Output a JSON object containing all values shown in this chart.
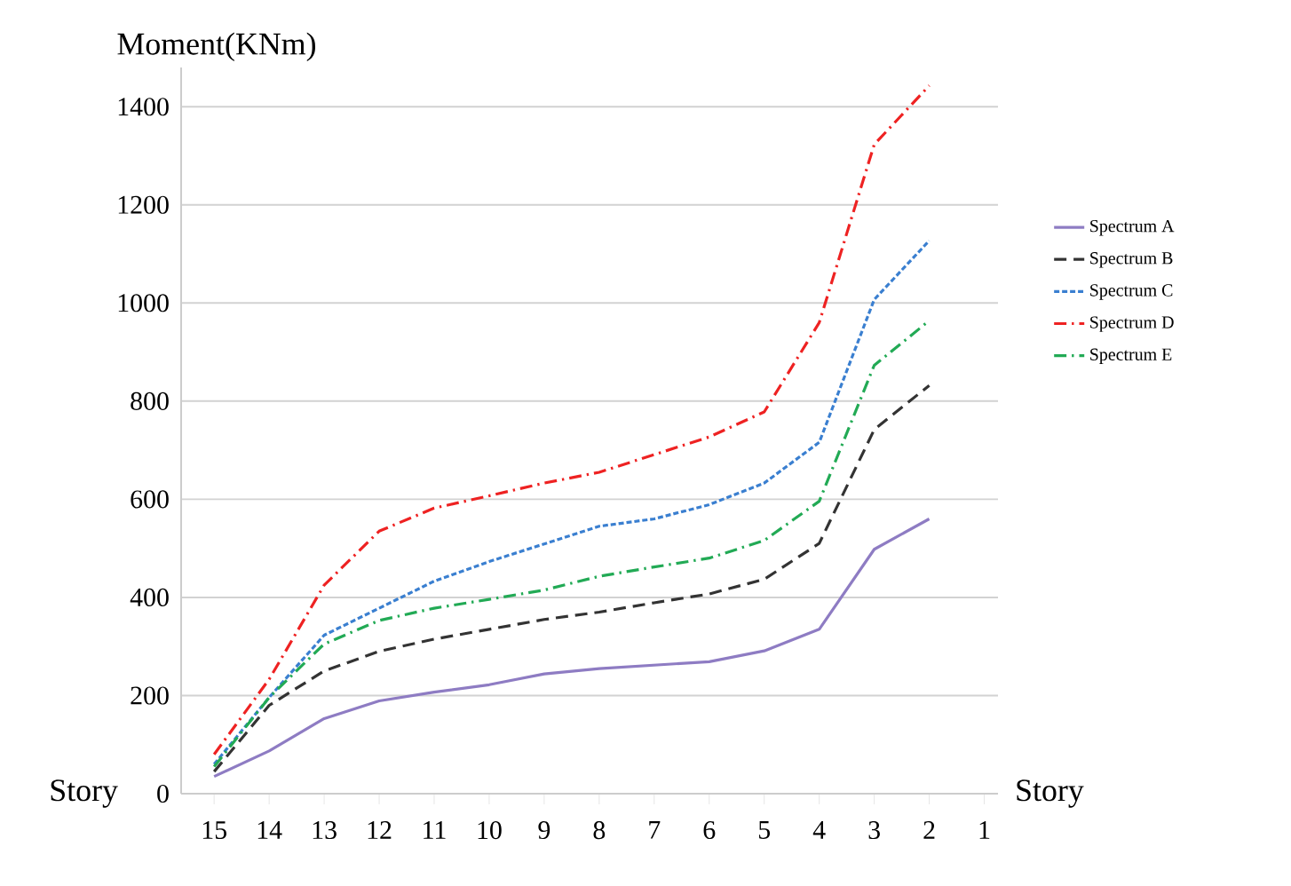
{
  "chart_data": {
    "type": "line",
    "ylabel": "Moment(KNm)",
    "xlabel": "Story",
    "annotations": [
      "Story"
    ],
    "categories": [
      "15",
      "14",
      "13",
      "12",
      "11",
      "10",
      "9",
      "8",
      "7",
      "6",
      "5",
      "4",
      "3",
      "2",
      "1"
    ],
    "ylim": [
      0,
      1480
    ],
    "yticks": [
      0,
      200,
      400,
      600,
      800,
      1000,
      1200,
      1400
    ],
    "grid": "y",
    "legend": "right",
    "marker": "none",
    "series": [
      {
        "name": "Spectrum A",
        "color": "#8e7cc3",
        "line_style": "solid",
        "values": [
          35,
          87,
          153,
          189,
          207,
          222,
          244,
          255,
          262,
          269,
          291,
          335,
          498,
          560,
          null
        ]
      },
      {
        "name": "Spectrum B",
        "color": "#333333",
        "line_style": "dashed",
        "values": [
          45,
          180,
          250,
          290,
          315,
          335,
          355,
          370,
          389,
          407,
          437,
          510,
          742,
          832,
          null
        ]
      },
      {
        "name": "Spectrum C",
        "color": "#3a7fd0",
        "line_style": "dotted",
        "values": [
          60,
          196,
          323,
          378,
          433,
          473,
          509,
          545,
          560,
          589,
          633,
          716,
          1007,
          1127,
          null
        ]
      },
      {
        "name": "Spectrum D",
        "color": "#ee2222",
        "line_style": "dashdot",
        "values": [
          80,
          233,
          425,
          535,
          582,
          607,
          633,
          655,
          691,
          727,
          778,
          960,
          1323,
          1443,
          null
        ]
      },
      {
        "name": "Spectrum E",
        "color": "#22aa55",
        "line_style": "dashdot",
        "values": [
          55,
          196,
          305,
          353,
          378,
          396,
          415,
          443,
          462,
          480,
          516,
          596,
          873,
          964,
          null
        ]
      }
    ]
  }
}
